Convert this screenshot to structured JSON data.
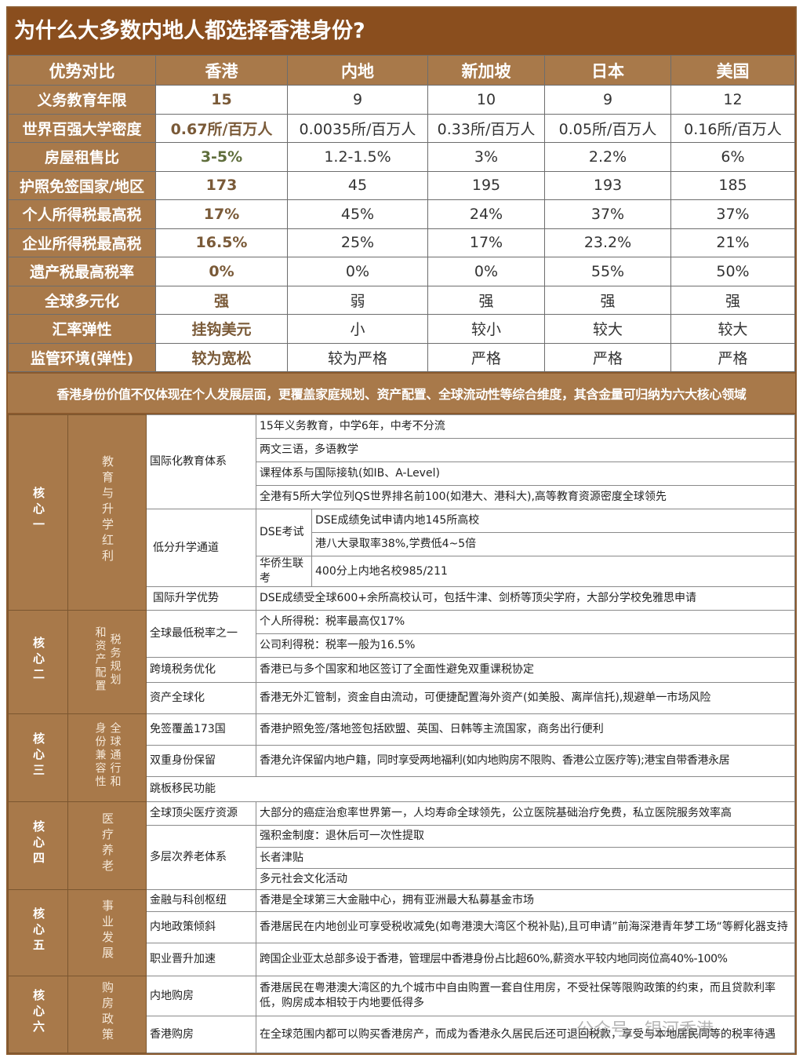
{
  "title": "为什么大多数内地人都选择香港身份?",
  "comparison": {
    "headers": [
      "优势对比",
      "香港",
      "内地",
      "新加坡",
      "日本",
      "美国"
    ],
    "rows": [
      {
        "label": "义务教育年限",
        "values": [
          "15",
          "9",
          "10",
          "9",
          "12"
        ]
      },
      {
        "label": "世界百强大学密度",
        "values": [
          "0.67所/百万人",
          "0.0035所/百万人",
          "0.33所/百万人",
          "0.05所/百万人",
          "0.16所/百万人"
        ]
      },
      {
        "label": "房屋租售比",
        "values": [
          "3-5%",
          "1.2-1.5%",
          "3%",
          "2.2%",
          "6%"
        ]
      },
      {
        "label": "护照免签国家/地区",
        "values": [
          "173",
          "45",
          "195",
          "193",
          "185"
        ]
      },
      {
        "label": "个人所得税最高税",
        "values": [
          "17%",
          "45%",
          "24%",
          "37%",
          "37%"
        ]
      },
      {
        "label": "企业所得税最高税",
        "values": [
          "16.5%",
          "25%",
          "17%",
          "23.2%",
          "21%"
        ]
      },
      {
        "label": "遗产税最高税率",
        "values": [
          "0%",
          "0%",
          "0%",
          "55%",
          "50%"
        ]
      },
      {
        "label": "全球多元化",
        "values": [
          "强",
          "弱",
          "强",
          "强",
          "强"
        ]
      },
      {
        "label": "汇率弹性",
        "values": [
          "挂钩美元",
          "小",
          "较小",
          "较大",
          "较大"
        ]
      },
      {
        "label": "监管环境(弹性)",
        "values": [
          "较为宽松",
          "较为严格",
          "严格",
          "严格",
          "严格"
        ]
      }
    ]
  },
  "band": "香港身份价值不仅体现在个人发展层面，更覆盖家庭规划、资产配置、全球流动性等综合维度，其含金量可归纳为六大核心领域",
  "cores": [
    {
      "title": "核心一",
      "subtitle": "教育与升学红利",
      "topics": [
        "国际化教育体系",
        "低分升学通道",
        "国际升学优势"
      ],
      "sub_topics": [
        "DSE考试",
        "华侨生联考"
      ],
      "items": [
        "15年义务教育，中学6年，中考不分流",
        "两文三语，多语教学",
        "课程体系与国际接轨(如IB、A-Level)",
        "全港有5所大学位列QS世界排名前100(如港大、港科大),高等教育资源密度全球领先",
        "DSE成绩免试申请内地145所高校",
        "港八大录取率38%,学费低4~5倍",
        "400分上内地名校985/211",
        "DSE成绩受全球600+余所高校认可，包括牛津、剑桥等顶尖学府，大部分学校免雅思申请"
      ]
    },
    {
      "title": "核心二",
      "subtitle_a": "税务规划",
      "subtitle_b": "和资产配置",
      "topics": [
        "全球最低税率之一",
        "跨境税务优化",
        "资产全球化"
      ],
      "items": [
        "个人所得税：税率最高仅17%",
        "公司利得税：税率一般为16.5%",
        "香港已与多个国家和地区签订了全面性避免双重课税协定",
        "香港无外汇管制，资金自由流动，可便捷配置海外资产(如美股、离岸信托),规避单一市场风险"
      ]
    },
    {
      "title": "核心三",
      "subtitle_a": "全球通行和",
      "subtitle_b": "身份兼容性",
      "topics": [
        "免签覆盖173国",
        "双重身份保留",
        "跳板移民功能"
      ],
      "items": [
        "香港护照免签/落地签包括欧盟、英国、日韩等主流国家，商务出行便利",
        "香港允许保留内地户籍，同时享受两地福利(如内地购房不限购、香港公立医疗等);港宝自带香港永居"
      ]
    },
    {
      "title": "核心四",
      "subtitle": "医疗养老",
      "topics": [
        "全球顶尖医疗资源",
        "多层次养老体系"
      ],
      "items": [
        "大部分的癌症治愈率世界第一，人均寿命全球领先，公立医院基础治疗免费，私立医院服务效率高",
        "强积金制度：退休后可一次性提取",
        "长者津贴",
        "多元社会文化活动"
      ]
    },
    {
      "title": "核心五",
      "subtitle": "事业发展",
      "topics": [
        "金融与科创枢纽",
        "内地政策倾斜",
        "职业晋升加速"
      ],
      "items": [
        "香港是全球第三大金融中心，拥有亚洲最大私募基金市场",
        "香港居民在内地创业可享受税收减免(如粤港澳大湾区个税补贴),且可申请”前海深港青年梦工场“等孵化器支持",
        "跨国企业亚太总部多设于香港，管理层中香港身份占比超60%,薪资水平较内地同岗位高40%-100%"
      ]
    },
    {
      "title": "核心六",
      "subtitle": "购房政策",
      "topics": [
        "内地购房",
        "香港购房"
      ],
      "items": [
        "香港居民在粤港澳大湾区的九个城市中自由购置一套自住用房，不受社保等限购政策的约束，而且贷款利率低，购房成本相较于内地要低得多",
        "在全球范围内都可以购买香港房产，而成为香港永久居民后还可退回税款，享受与本地居民同等的税率待遇"
      ]
    }
  ],
  "watermark": "公众号 · 银河香港",
  "colors": {
    "title_bg": "#8a4e1e",
    "header_bg": "#a8794a",
    "hk_text": "#7a5a38"
  }
}
